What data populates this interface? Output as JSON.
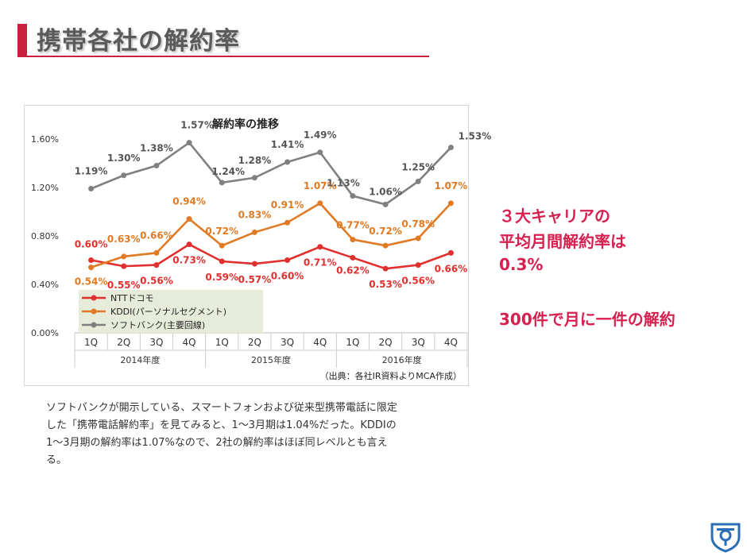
{
  "header": {
    "title": "携帯各社の解約率"
  },
  "side": {
    "line1": "３大キャリアの",
    "line2": "平均月間解約率は",
    "line3": "0.3%",
    "line4": "300件で月に一件の解約"
  },
  "caption": {
    "line1": "ソフトバンクが開示している、スマートフォンおよび従来型携帯電話に限定",
    "line2": "した「携帯電話解約率」を見てみると、1〜3月期は1.04%だった。KDDIの",
    "line3": "1〜3月期の解約率は1.07%なので、2社の解約率はほぼ同レベルとも言え",
    "line4": "る。"
  },
  "logo": {
    "icon": "shield-pin-logo"
  },
  "colors": {
    "accent": "#c8203f",
    "ntt": "#e0302e",
    "kddi": "#e07a24",
    "softbank": "#808080"
  },
  "chart_data": {
    "type": "line",
    "title": "解約率の推移",
    "categories": [
      "1Q",
      "2Q",
      "3Q",
      "4Q",
      "1Q",
      "2Q",
      "3Q",
      "4Q",
      "1Q",
      "2Q",
      "3Q",
      "4Q"
    ],
    "year_groups": [
      "2014年度",
      "2015年度",
      "2016年度"
    ],
    "y_ticks": [
      "1.60%",
      "1.20%",
      "0.80%",
      "0.40%",
      "0.00%"
    ],
    "ylim": [
      0,
      1.6
    ],
    "source": "（出典：各社IR資料よりMCA作成）",
    "legend_position": "bottom-left",
    "grid": false,
    "series": [
      {
        "name": "NTTドコモ",
        "color": "#e0302e",
        "values": [
          0.6,
          0.55,
          0.56,
          0.73,
          0.59,
          0.57,
          0.6,
          0.71,
          0.62,
          0.53,
          0.56,
          0.66
        ],
        "labels": [
          "0.60%",
          "0.55%",
          "0.56%",
          "0.73%",
          "0.59%",
          "0.57%",
          "0.60%",
          "0.71%",
          "0.62%",
          "0.53%",
          "0.56%",
          "0.66%"
        ]
      },
      {
        "name": "KDDI(パーソナルセグメント)",
        "color": "#e07a24",
        "values": [
          0.54,
          0.63,
          0.66,
          0.94,
          0.72,
          0.83,
          0.91,
          1.07,
          0.77,
          0.72,
          0.78,
          1.07
        ],
        "labels": [
          "0.54%",
          "0.63%",
          "0.66%",
          "0.94%",
          "0.72%",
          "0.83%",
          "0.91%",
          "1.07%",
          "0.77%",
          "0.72%",
          "0.78%",
          "1.07%"
        ]
      },
      {
        "name": "ソフトバンク(主要回線)",
        "color": "#808080",
        "values": [
          1.19,
          1.3,
          1.38,
          1.57,
          1.24,
          1.28,
          1.41,
          1.49,
          1.13,
          1.06,
          1.25,
          1.53
        ],
        "labels": [
          "1.19%",
          "1.30%",
          "1.38%",
          "1.57%",
          "1.24%",
          "1.28%",
          "1.41%",
          "1.49%",
          "1.13%",
          "1.06%",
          "1.25%",
          "1.53%"
        ]
      }
    ]
  }
}
